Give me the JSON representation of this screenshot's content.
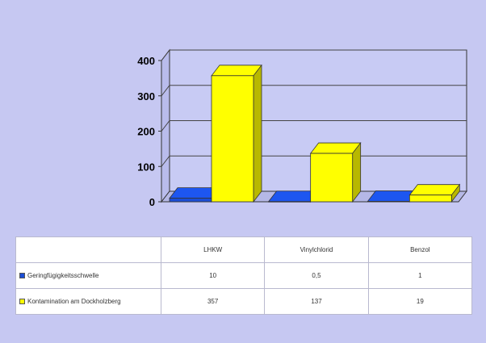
{
  "chart_data": {
    "type": "bar",
    "categories": [
      "LHKW",
      "Vinylchlorid",
      "Benzol"
    ],
    "series": [
      {
        "name": "Geringfügigkeitsschwelle",
        "values": [
          10,
          0.5,
          1
        ],
        "color": "#1a4dd6"
      },
      {
        "name": "Kontamination am Dockholzberg",
        "values": [
          357,
          137,
          19
        ],
        "color": "#ffff00"
      }
    ],
    "yticks": [
      "0",
      "100",
      "200",
      "300",
      "400"
    ],
    "ylim": [
      0,
      400
    ],
    "grid": true,
    "legend": "table below chart"
  },
  "table": {
    "headers": [
      "LHKW",
      "Vinylchlorid",
      "Benzol"
    ],
    "rows": [
      {
        "label": "Geringfügigkeitsschwelle",
        "values": [
          "10",
          "0,5",
          "1"
        ],
        "color": "#1a4dd6"
      },
      {
        "label": "Kontamination am Dockholzberg",
        "values": [
          "357",
          "137",
          "19"
        ],
        "color": "#ffff00"
      }
    ]
  }
}
